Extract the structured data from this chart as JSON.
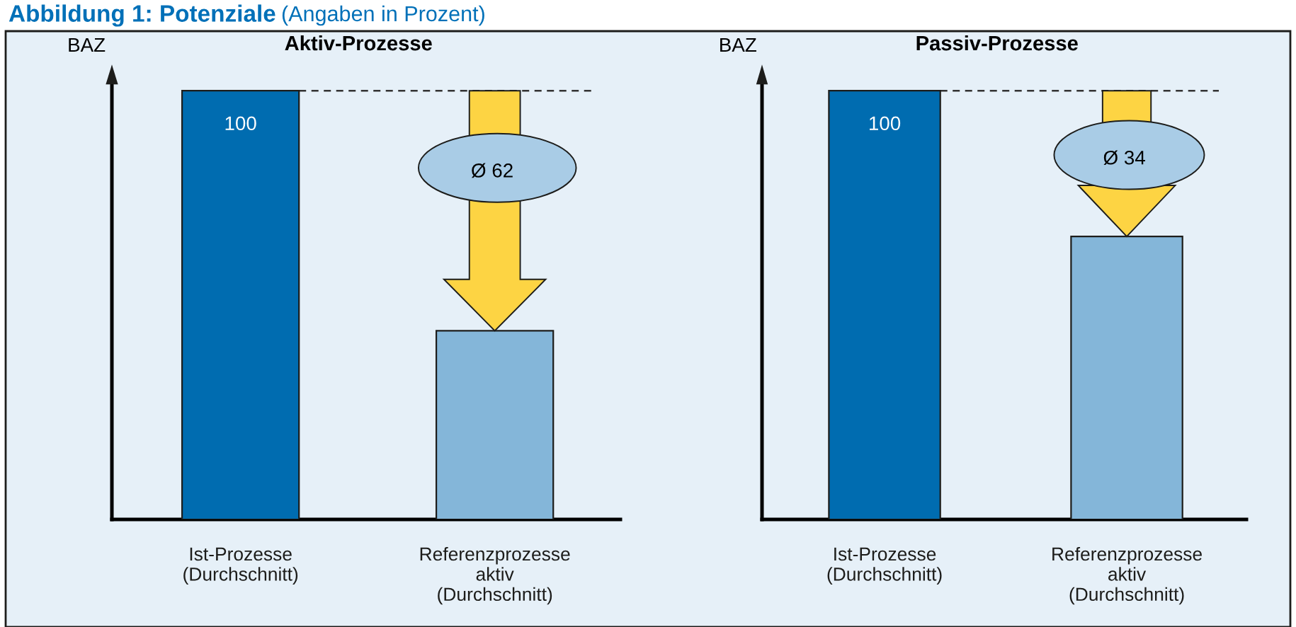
{
  "chart_data": [
    {
      "type": "bar",
      "title": "Aktiv-Prozesse",
      "ylabel": "BAZ",
      "categories": [
        "Ist-Prozesse\n(Durchschnitt)",
        "Referenzprozesse\naktiv\n(Durchschnitt)"
      ],
      "values": [
        100,
        44
      ],
      "colors": [
        "#006cb0",
        "#84b6d9"
      ],
      "value_labels": [
        "100",
        null
      ],
      "ylim": [
        0,
        103
      ],
      "tick_labels": "x",
      "grid": false,
      "legend": false,
      "ref_lines": [
        {
          "axis": "y",
          "value": 100,
          "color": "#333333",
          "line_style": "dashed"
        }
      ],
      "annotations": [
        "Abbildung 1: Potenziale",
        "(Angaben in Prozent)",
        "Ø 62"
      ]
    },
    {
      "type": "bar",
      "title": "Passiv-Prozesse",
      "ylabel": "BAZ",
      "categories": [
        "Ist-Prozesse\n(Durchschnitt)",
        "Referenzprozesse\naktiv\n(Durchschnitt)"
      ],
      "values": [
        100,
        66
      ],
      "colors": [
        "#006cb0",
        "#84b6d9"
      ],
      "value_labels": [
        "100",
        null
      ],
      "ylim": [
        0,
        103
      ],
      "tick_labels": "x",
      "grid": false,
      "legend": false,
      "ref_lines": [
        {
          "axis": "y",
          "value": 100,
          "color": "#333333",
          "line_style": "dashed"
        }
      ],
      "annotations": [
        "Ø 34"
      ]
    }
  ]
}
